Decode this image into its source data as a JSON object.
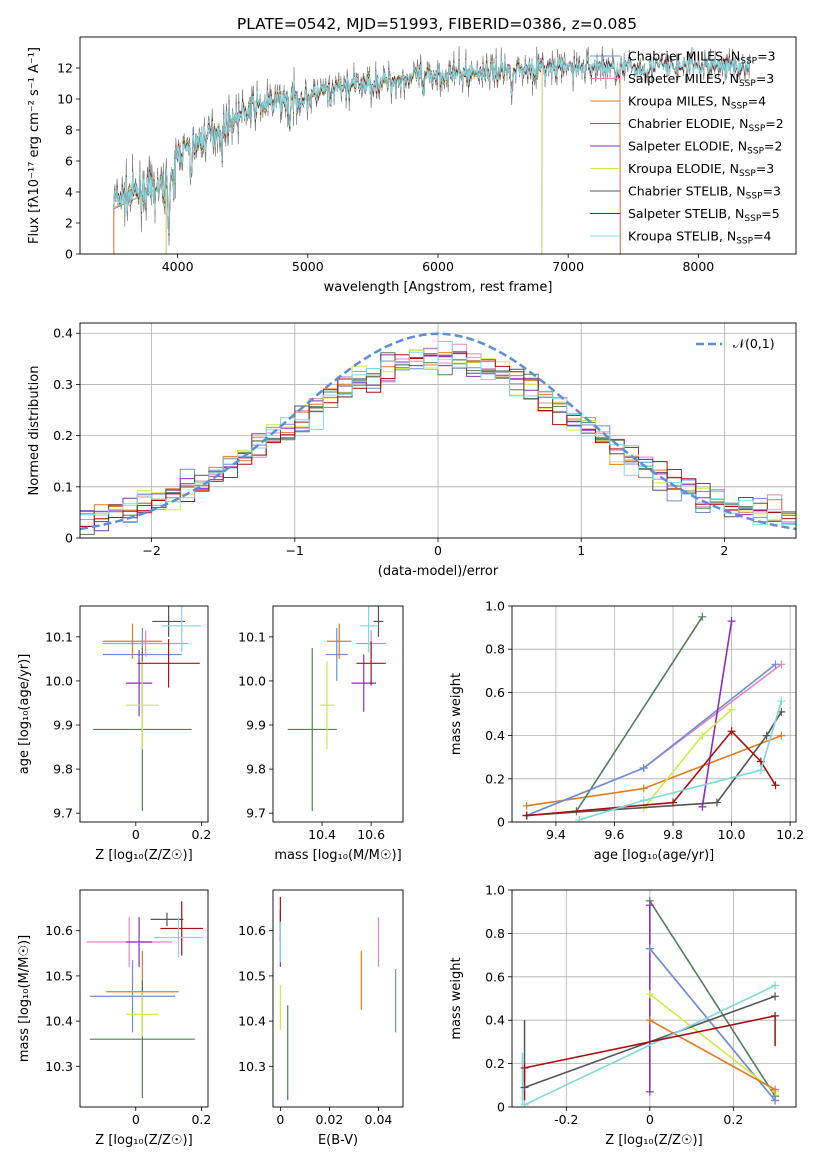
{
  "title": "PLATE=0542, MJD=51993, FIBERID=0386, z=0.085",
  "colors": {
    "cM": "#6b8fd6",
    "sM": "#e585c2",
    "kM": "#e07b23",
    "cE": "#4f8059",
    "sE": "#8a2ec1",
    "kE": "#d1ea45",
    "cS": "#545454",
    "sS": "#a81010",
    "kS": "#7fd8dd",
    "normal": "#5b8dd9",
    "grid": "#b0b0b0"
  },
  "chart_data": [
    {
      "type": "line",
      "id": "spectrum",
      "xlabel": "wavelength [Angstrom, rest frame]",
      "ylabel": "Flux [fλ10⁻¹⁷ erg cm⁻² s⁻¹ A⁻¹]",
      "xlim": [
        3250,
        8750
      ],
      "ylim": [
        0,
        14
      ],
      "xticks": [
        4000,
        5000,
        6000,
        7000,
        8000
      ],
      "yticks": [
        0,
        2,
        4,
        6,
        8,
        10,
        12
      ],
      "grid": false,
      "legend": "top-right",
      "series": [
        {
          "name": "Chabrier MILES, N_SSP=3",
          "ckey": "cM",
          "lib": "M",
          "ssp": "3"
        },
        {
          "name": "Salpeter MILES, N_SSP=3",
          "ckey": "sM",
          "lib": "M",
          "ssp": "3"
        },
        {
          "name": "Kroupa MILES, N_SSP=4",
          "ckey": "kM",
          "lib": "M",
          "ssp": "4"
        },
        {
          "name": "Chabrier ELODIE, N_SSP=2",
          "ckey": "cE",
          "lib": "E",
          "ssp": "2"
        },
        {
          "name": "Salpeter ELODIE, N_SSP=2",
          "ckey": "sE",
          "lib": "E",
          "ssp": "2"
        },
        {
          "name": "Kroupa ELODIE, N_SSP=3",
          "ckey": "kE",
          "lib": "E",
          "ssp": "3"
        },
        {
          "name": "Chabrier STELIB, N_SSP=3",
          "ckey": "cS",
          "lib": "S",
          "ssp": "3"
        },
        {
          "name": "Salpeter STELIB, N_SSP=5",
          "ckey": "sS",
          "lib": "S",
          "ssp": "5"
        },
        {
          "name": "Kroupa STELIB, N_SSP=4",
          "ckey": "kS",
          "lib": "S",
          "ssp": "4"
        }
      ],
      "continuum": {
        "x": [
          3500,
          3700,
          3900,
          4000,
          4200,
          4400,
          4600,
          4800,
          5000,
          5200,
          5400,
          5600,
          5800,
          6000,
          6200,
          6400,
          6600,
          6800,
          7000,
          7200,
          7400,
          7600,
          7800,
          8000,
          8200,
          8400
        ],
        "y": [
          3.5,
          4.0,
          4.3,
          6.5,
          7.4,
          8.6,
          9.5,
          9.9,
          10.1,
          10.7,
          10.9,
          11.1,
          11.4,
          11.6,
          11.6,
          11.8,
          11.9,
          12.0,
          12.0,
          12.1,
          12.0,
          12.0,
          12.1,
          12.1,
          12.2,
          12.1
        ]
      }
    },
    {
      "type": "step",
      "id": "residuals",
      "xlabel": "(data-model)/error",
      "ylabel": "Normed distribution",
      "xlim": [
        -2.5,
        2.5
      ],
      "ylim": [
        0,
        0.42
      ],
      "xticks": [
        -2,
        -1,
        0,
        1,
        2
      ],
      "yticks": [
        0,
        0.1,
        0.2,
        0.3,
        0.4
      ],
      "grid": true,
      "legend": "top-right",
      "normal_label": "𝒩(0,1)",
      "bin_width": 0.1
    },
    {
      "type": "errorbar",
      "id": "age_vs_Z",
      "xlabel": "Z [log₁₀(Z/Z☉)]",
      "ylabel": "age  [log₁₀(age/yr)]",
      "xlim": [
        -0.17,
        0.22
      ],
      "ylim": [
        9.68,
        10.17
      ],
      "xticks": [
        0.0,
        0.2
      ],
      "yticks": [
        9.7,
        9.8,
        9.9,
        10.0,
        10.1
      ],
      "grid": false,
      "points": [
        {
          "ckey": "cM",
          "x": 0.02,
          "y": 10.06,
          "xerr": 0.12,
          "yerr": 0.06
        },
        {
          "ckey": "sM",
          "x": 0.03,
          "y": 10.085,
          "xerr": 0.13,
          "yerr": 0.03
        },
        {
          "ckey": "kM",
          "x": -0.01,
          "y": 10.09,
          "xerr": 0.09,
          "yerr": 0.04
        },
        {
          "ckey": "cE",
          "x": 0.02,
          "y": 9.89,
          "xerr": 0.15,
          "yerr": 0.185
        },
        {
          "ckey": "sE",
          "x": 0.01,
          "y": 9.995,
          "xerr": 0.04,
          "yerr": 0.075
        },
        {
          "ckey": "kE",
          "x": 0.02,
          "y": 9.945,
          "xerr": 0.05,
          "yerr": 0.1
        },
        {
          "ckey": "cS",
          "x": 0.1,
          "y": 10.135,
          "xerr": 0.05,
          "yerr": 0.035
        },
        {
          "ckey": "sS",
          "x": 0.1,
          "y": 10.04,
          "xerr": 0.095,
          "yerr": 0.055
        },
        {
          "ckey": "kS",
          "x": 0.14,
          "y": 10.125,
          "xerr": 0.06,
          "yerr": 0.06
        }
      ]
    },
    {
      "type": "errorbar",
      "id": "age_vs_mass",
      "xlabel": "mass [log₁₀(M/M☉)]",
      "ylabel": "",
      "xlim": [
        10.2,
        10.73
      ],
      "ylim": [
        9.68,
        10.17
      ],
      "xticks": [
        10.4,
        10.6
      ],
      "yticks": [
        9.7,
        9.8,
        9.9,
        10.0,
        10.1
      ],
      "grid": false,
      "points": [
        {
          "ckey": "cM",
          "x": 10.46,
          "y": 10.06,
          "xerr": 0.045,
          "yerr": 0.06
        },
        {
          "ckey": "sM",
          "x": 10.6,
          "y": 10.085,
          "xerr": 0.06,
          "yerr": 0.03
        },
        {
          "ckey": "kM",
          "x": 10.47,
          "y": 10.09,
          "xerr": 0.05,
          "yerr": 0.04
        },
        {
          "ckey": "cE",
          "x": 10.36,
          "y": 9.89,
          "xerr": 0.1,
          "yerr": 0.185
        },
        {
          "ckey": "sE",
          "x": 10.57,
          "y": 9.995,
          "xerr": 0.05,
          "yerr": 0.065
        },
        {
          "ckey": "kE",
          "x": 10.42,
          "y": 9.945,
          "xerr": 0.03,
          "yerr": 0.1
        },
        {
          "ckey": "cS",
          "x": 10.63,
          "y": 10.135,
          "xerr": 0.02,
          "yerr": 0.035
        },
        {
          "ckey": "sS",
          "x": 10.6,
          "y": 10.04,
          "xerr": 0.06,
          "yerr": 0.05
        },
        {
          "ckey": "kS",
          "x": 10.59,
          "y": 10.125,
          "xerr": 0.035,
          "yerr": 0.06
        }
      ]
    },
    {
      "type": "line",
      "id": "weight_vs_age",
      "xlabel": "age  [log₁₀(age/yr)]",
      "ylabel": "mass weight",
      "xlim": [
        9.25,
        10.22
      ],
      "ylim": [
        0,
        1
      ],
      "xticks": [
        9.4,
        9.6,
        9.8,
        10.0,
        10.2
      ],
      "yticks": [
        0,
        0.2,
        0.4,
        0.6,
        0.8,
        1.0
      ],
      "grid": true,
      "series": [
        {
          "ckey": "kM",
          "x": [
            9.3,
            9.7,
            10.17
          ],
          "y": [
            0.075,
            0.155,
            0.4
          ]
        },
        {
          "ckey": "cE",
          "x": [
            9.47,
            9.9
          ],
          "y": [
            0.05,
            0.95
          ]
        },
        {
          "ckey": "sM",
          "x": [
            9.3,
            9.7,
            10.17
          ],
          "y": [
            0.03,
            0.25,
            0.73
          ]
        },
        {
          "ckey": "cM",
          "x": [
            9.3,
            9.7,
            10.15
          ],
          "y": [
            0.03,
            0.25,
            0.73
          ]
        },
        {
          "ckey": "sE",
          "x": [
            9.9,
            10.0
          ],
          "y": [
            0.07,
            0.93
          ]
        },
        {
          "ckey": "kE",
          "x": [
            9.7,
            9.9,
            10.0
          ],
          "y": [
            0.065,
            0.4,
            0.52
          ]
        },
        {
          "ckey": "cS",
          "x": [
            9.3,
            9.95,
            10.12,
            10.17
          ],
          "y": [
            0.03,
            0.09,
            0.4,
            0.51
          ]
        },
        {
          "ckey": "sS",
          "x": [
            9.3,
            9.8,
            10.0,
            10.1,
            10.15
          ],
          "y": [
            0.03,
            0.09,
            0.42,
            0.28,
            0.17
          ]
        },
        {
          "ckey": "kS",
          "x": [
            9.48,
            9.7,
            10.1,
            10.17
          ],
          "y": [
            0.01,
            0.1,
            0.24,
            0.56
          ]
        }
      ]
    },
    {
      "type": "errorbar",
      "id": "mass_vs_Z",
      "xlabel": "Z [log₁₀(Z/Z☉)]",
      "ylabel": "mass [log₁₀(M/M☉)]",
      "xlim": [
        -0.17,
        0.22
      ],
      "ylim": [
        10.21,
        10.69
      ],
      "xticks": [
        0.0,
        0.2
      ],
      "yticks": [
        10.3,
        10.4,
        10.5,
        10.6
      ],
      "grid": false,
      "points": [
        {
          "ckey": "cM",
          "x": -0.01,
          "y": 10.455,
          "xerr": 0.13,
          "yerr": 0.08
        },
        {
          "ckey": "sM",
          "x": -0.02,
          "y": 10.575,
          "xerr": 0.13,
          "yerr": 0.055
        },
        {
          "ckey": "kM",
          "x": 0.02,
          "y": 10.465,
          "xerr": 0.11,
          "yerr": 0.09
        },
        {
          "ckey": "cE",
          "x": 0.02,
          "y": 10.36,
          "xerr": 0.16,
          "yerr": 0.13
        },
        {
          "ckey": "sE",
          "x": 0.01,
          "y": 10.575,
          "xerr": 0.04,
          "yerr": 0.055
        },
        {
          "ckey": "kE",
          "x": 0.02,
          "y": 10.415,
          "xerr": 0.05,
          "yerr": 0.05
        },
        {
          "ckey": "cS",
          "x": 0.095,
          "y": 10.625,
          "xerr": 0.05,
          "yerr": 0.015
        },
        {
          "ckey": "sS",
          "x": 0.14,
          "y": 10.605,
          "xerr": 0.065,
          "yerr": 0.06
        },
        {
          "ckey": "kS",
          "x": 0.13,
          "y": 10.585,
          "xerr": 0.075,
          "yerr": 0.045
        }
      ]
    },
    {
      "type": "errorbar",
      "id": "mass_vs_ebv",
      "xlabel": "E(B-V)",
      "ylabel": "",
      "xlim": [
        -0.003,
        0.05
      ],
      "ylim": [
        10.21,
        10.69
      ],
      "xticks": [
        0.0,
        0.02,
        0.04
      ],
      "yticks": [
        10.3,
        10.4,
        10.5,
        10.6
      ],
      "grid": false,
      "points": [
        {
          "ckey": "cM",
          "x": 0.047,
          "y": 10.445,
          "xerr": 0,
          "yerr": 0.07
        },
        {
          "ckey": "sM",
          "x": 0.04,
          "y": 10.575,
          "xerr": 0,
          "yerr": 0.055
        },
        {
          "ckey": "kM",
          "x": 0.033,
          "y": 10.49,
          "xerr": 0,
          "yerr": 0.065
        },
        {
          "ckey": "cE",
          "x": 0.003,
          "y": 10.33,
          "xerr": 0,
          "yerr": 0.105
        },
        {
          "ckey": "sE",
          "x": 0.0,
          "y": 10.565,
          "xerr": 0,
          "yerr": 0.045
        },
        {
          "ckey": "kE",
          "x": 0.0,
          "y": 10.43,
          "xerr": 0,
          "yerr": 0.05
        },
        {
          "ckey": "cS",
          "x": 0.0,
          "y": 10.625,
          "xerr": 0,
          "yerr": 0.02
        },
        {
          "ckey": "sS",
          "x": 0.0,
          "y": 10.625,
          "xerr": 0,
          "yerr": 0.05
        },
        {
          "ckey": "kS",
          "x": 0.0,
          "y": 10.575,
          "xerr": 0,
          "yerr": 0.045
        }
      ]
    },
    {
      "type": "line",
      "id": "weight_vs_Z",
      "xlabel": "Z [log₁₀(Z/Z☉)]",
      "ylabel": "mass weight",
      "xlim": [
        -0.33,
        0.35
      ],
      "ylim": [
        0,
        1
      ],
      "xticks": [
        -0.2,
        0.0,
        0.2
      ],
      "yticks": [
        0,
        0.2,
        0.4,
        0.6,
        0.8,
        1.0
      ],
      "grid": true,
      "series": [
        {
          "ckey": "cE",
          "x": [
            0,
            0.3
          ],
          "y": [
            0.95,
            0.05
          ]
        },
        {
          "ckey": "sE",
          "x": [
            0,
            0
          ],
          "y": [
            0.07,
            0.93
          ]
        },
        {
          "ckey": "sM",
          "x": [
            0,
            0.3
          ],
          "y": [
            0.73,
            0.03
          ]
        },
        {
          "ckey": "cM",
          "x": [
            0,
            0.3
          ],
          "y": [
            0.73,
            0.03
          ]
        },
        {
          "ckey": "kE",
          "x": [
            0,
            0.3
          ],
          "y": [
            0.52,
            0.07
          ]
        },
        {
          "ckey": "kM",
          "x": [
            0,
            0.3
          ],
          "y": [
            0.4,
            0.08
          ]
        },
        {
          "ckey": "cS",
          "x": [
            -0.3,
            0.3
          ],
          "y": [
            0.09,
            0.51
          ]
        },
        {
          "ckey": "kS",
          "x": [
            -0.3,
            0.3
          ],
          "y": [
            0.01,
            0.56
          ]
        },
        {
          "ckey": "sS",
          "x": [
            -0.3,
            0.3
          ],
          "y": [
            0.18,
            0.42
          ]
        }
      ],
      "vbars": [
        {
          "ckey": "cS",
          "x": -0.3,
          "y0": 0.09,
          "y1": 0.4
        },
        {
          "ckey": "kS",
          "x": -0.305,
          "y0": 0.01,
          "y1": 0.25
        },
        {
          "ckey": "sS",
          "x": -0.3,
          "y0": 0.03,
          "y1": 0.18
        },
        {
          "ckey": "sS",
          "x": 0.3,
          "y0": 0.28,
          "y1": 0.42
        }
      ]
    }
  ]
}
